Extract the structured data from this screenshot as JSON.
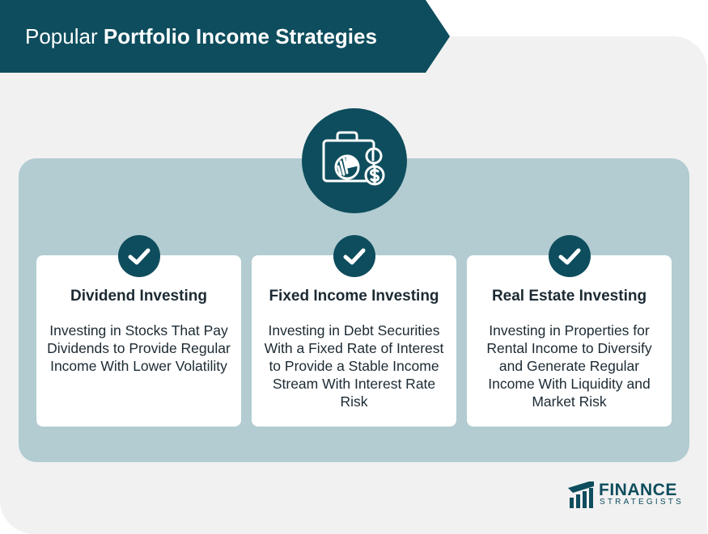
{
  "header": {
    "title_prefix": "Popular",
    "title_strong": "Portfolio Income Strategies"
  },
  "main_icon": "portfolio-chart-dollar-icon",
  "cards": [
    {
      "title": "Dividend Investing",
      "description": "Investing in Stocks That Pay Dividends to Provide Regular Income With Lower Volatility",
      "icon": "check-icon"
    },
    {
      "title": "Fixed Income Investing",
      "description": "Investing in Debt Securities With a Fixed Rate of Interest to Provide a Stable Income Stream With Interest Rate Risk",
      "icon": "check-icon"
    },
    {
      "title": "Real Estate Investing",
      "description": "Investing in Properties for Rental Income to Diversify and Generate Regular Income With Liquidity and Market Risk",
      "icon": "check-icon"
    }
  ],
  "brand": {
    "name": "FINANCE",
    "sub": "STRATEGISTS"
  },
  "colors": {
    "primary": "#0e4d5d",
    "panel": "#b2ccd1",
    "background": "#f1f1f1",
    "text": "#1c2a33"
  }
}
